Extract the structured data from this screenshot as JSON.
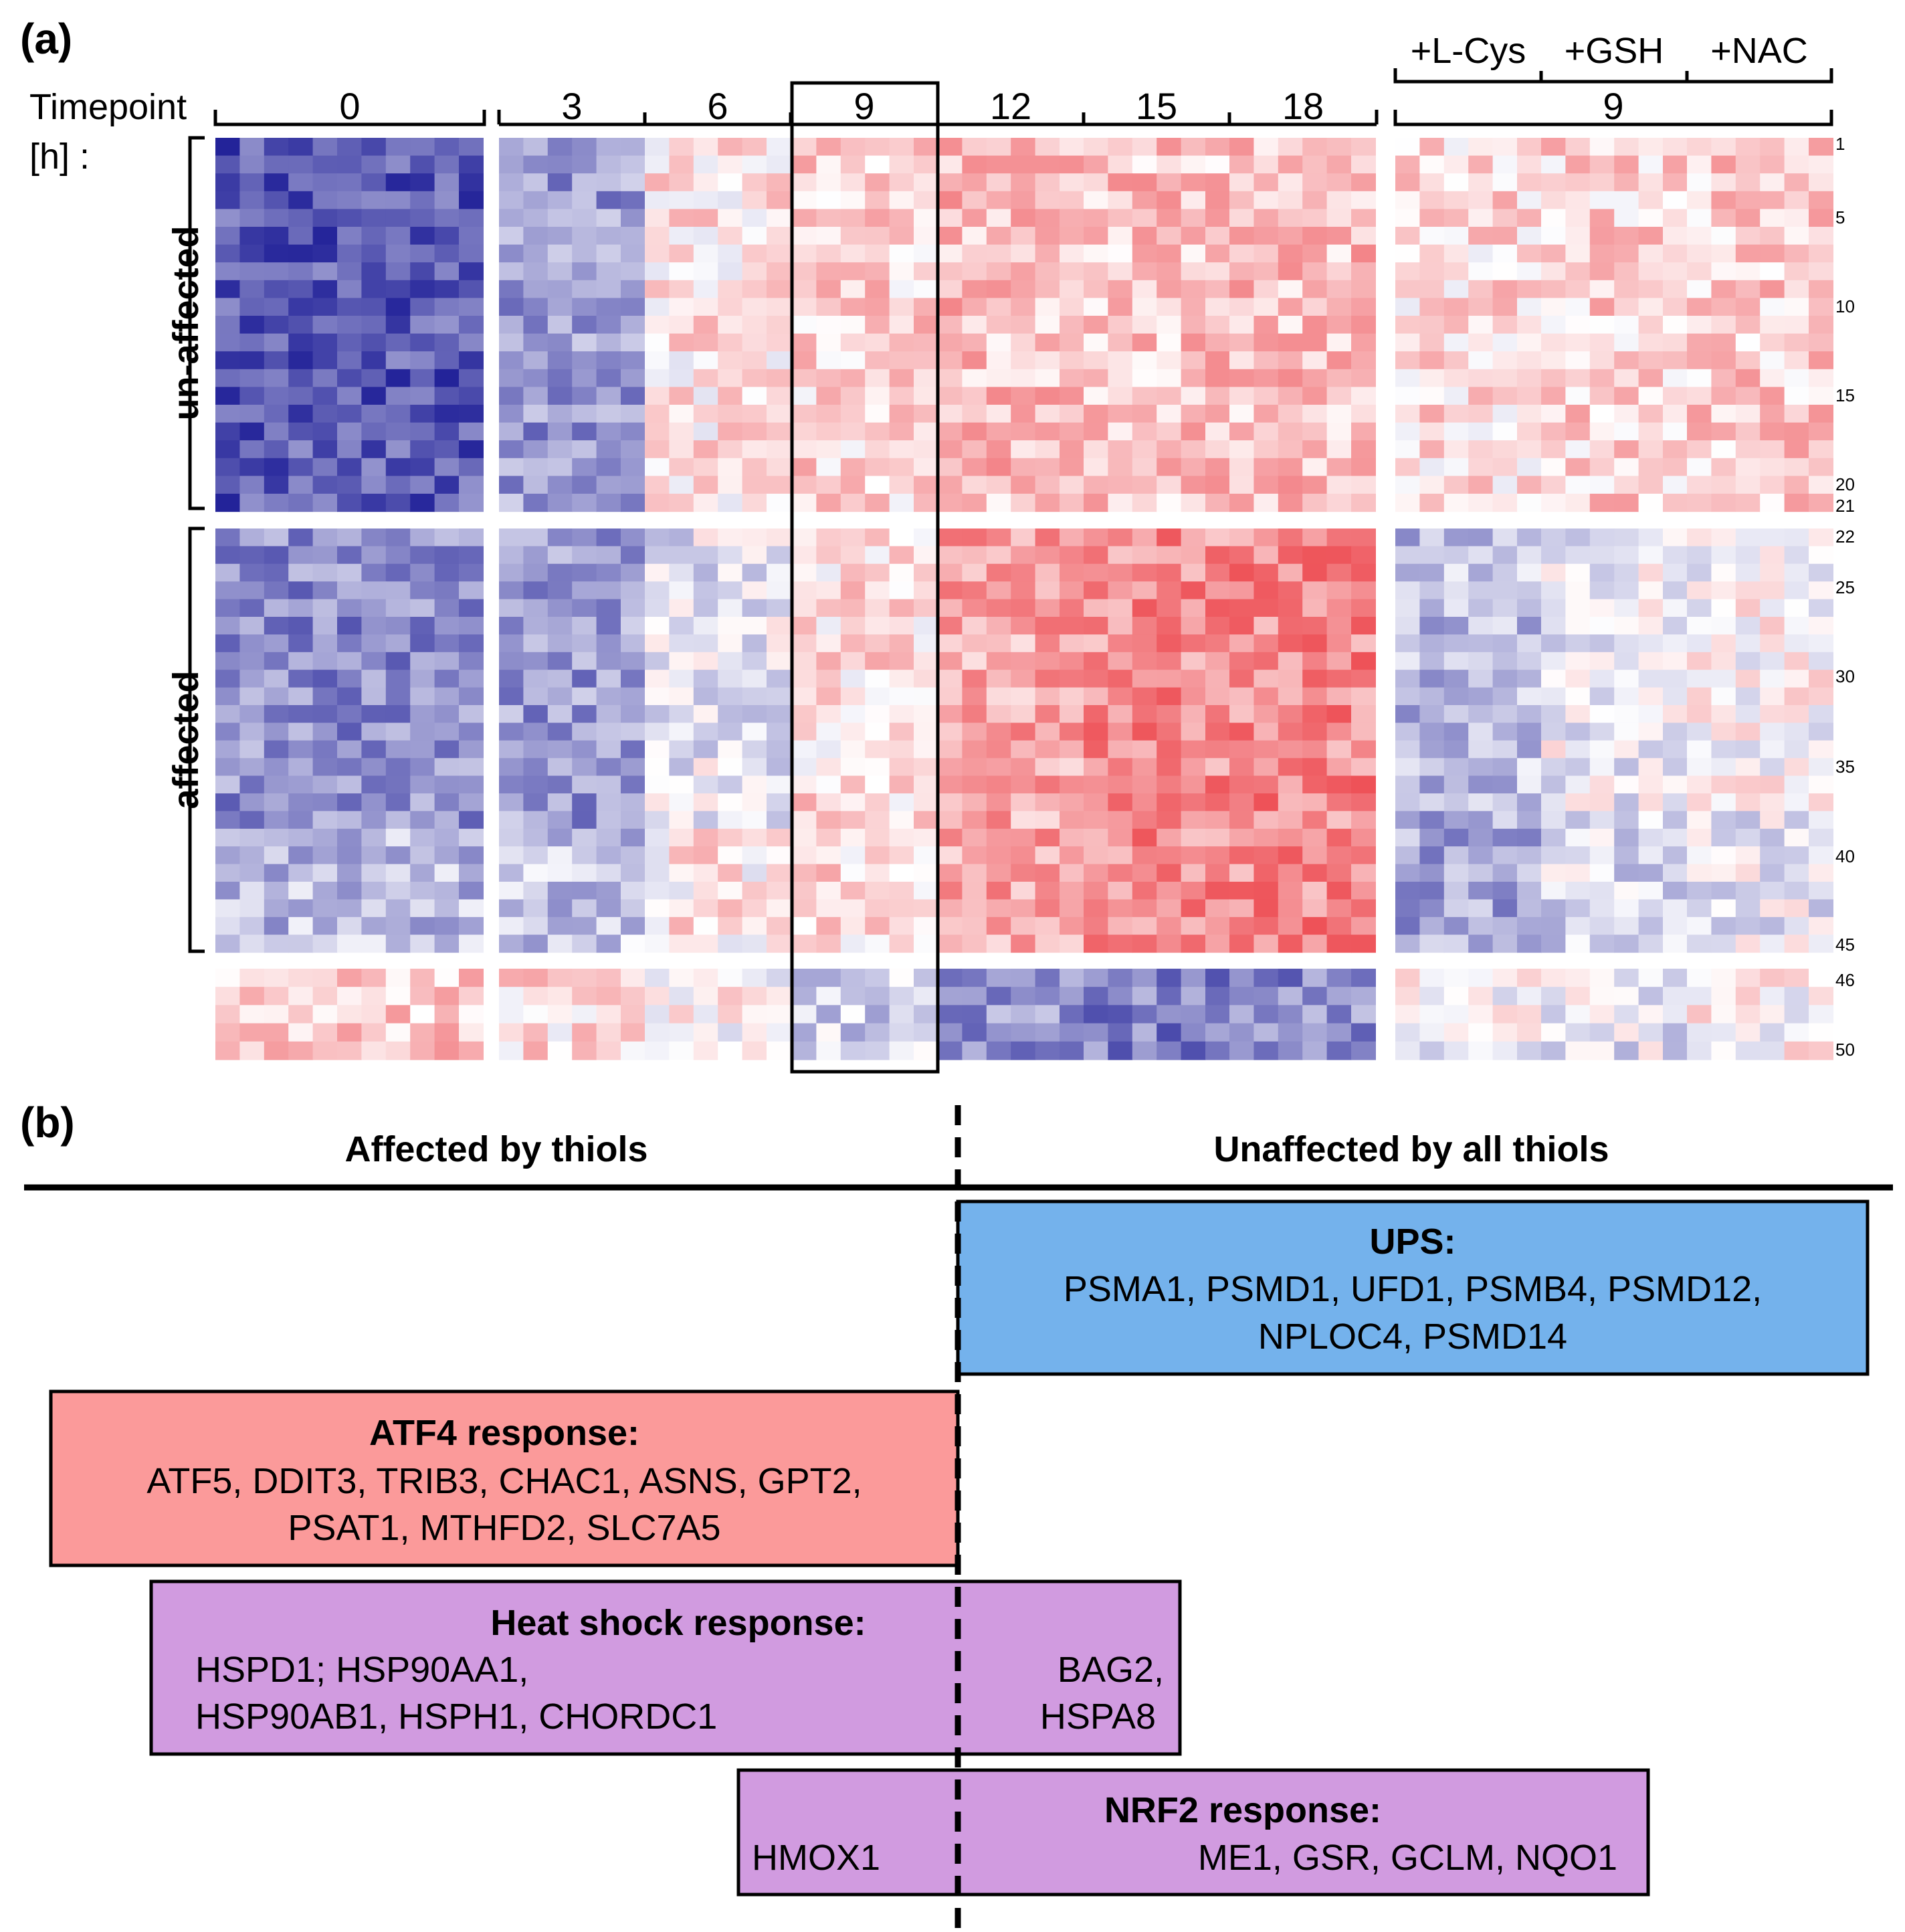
{
  "panel_a_label": "(a)",
  "panel_b_label": "(b)",
  "timepoint_label": "Timepoint",
  "timepoint_unit": "[h] :",
  "timepoints": [
    "0",
    "3",
    "6",
    "9",
    "12",
    "15",
    "18"
  ],
  "treatments": [
    "+L-Cys",
    "+GSH",
    "+NAC"
  ],
  "treatment_timepoint": "9",
  "group_labels": {
    "unaffected": "un-affected",
    "affected": "affected"
  },
  "row_numbers": [
    "1",
    "5",
    "10",
    "15",
    "20",
    "21",
    "22",
    "25",
    "30",
    "35",
    "40",
    "45",
    "46",
    "50"
  ],
  "header_left": "Affected by thiols",
  "header_right": "Unaffected by all thiols",
  "colors": {
    "low": "#1c1c96",
    "mid": "#ffffff",
    "high": "#e8171f",
    "ups_box": "#74b2ec",
    "atf4_box": "#fb9a9a",
    "purple_box": "#d19be0"
  },
  "boxes": {
    "ups": {
      "title": "UPS:",
      "line1": "PSMA1, PSMD1, UFD1, PSMB4, PSMD12,",
      "line2": "NPLOC4, PSMD14"
    },
    "atf4": {
      "title": "ATF4 response:",
      "line1": "ATF5, DDIT3, TRIB3, CHAC1, ASNS, GPT2,",
      "line2": "PSAT1, MTHFD2, SLC7A5"
    },
    "heat": {
      "title": "Heat shock response:",
      "left1": "HSPD1; HSP90AA1,",
      "left2": "HSP90AB1, HSPH1, CHORDC1",
      "right1": "BAG2,",
      "right2": "HSPA8"
    },
    "nrf2": {
      "title": "NRF2 response:",
      "left": "HMOX1",
      "right": "ME1, GSR, GCLM, NQO1"
    }
  }
}
